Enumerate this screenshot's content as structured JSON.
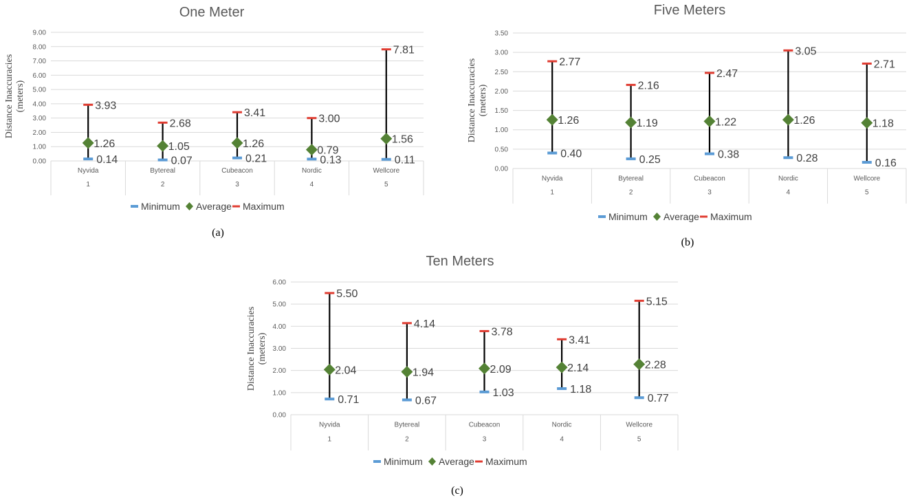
{
  "chart_data": [
    {
      "type": "stock",
      "title": "One Meter",
      "ylabel": "Distance Inaccuracies (meters)",
      "ylabel_lines": [
        "Distance Inaccuracies",
        "(meters)"
      ],
      "ylim": [
        0,
        9
      ],
      "yticks": [
        "0.00",
        "1.00",
        "2.00",
        "3.00",
        "4.00",
        "5.00",
        "6.00",
        "7.00",
        "8.00",
        "9.00"
      ],
      "categories": [
        "Nyvida",
        "Bytereal",
        "Cubeacon",
        "Nordic",
        "Wellcore"
      ],
      "category_index": [
        "1",
        "2",
        "3",
        "4",
        "5"
      ],
      "series": [
        {
          "name": "Minimum",
          "values": [
            0.14,
            0.07,
            0.21,
            0.13,
            0.11
          ],
          "labels": [
            "0.14",
            "0.07",
            "0.21",
            "0.13",
            "0.11"
          ]
        },
        {
          "name": "Average",
          "values": [
            1.26,
            1.05,
            1.26,
            0.79,
            1.56
          ],
          "labels": [
            "1.26",
            "1.05",
            "1.26",
            "0.79",
            "1.56"
          ]
        },
        {
          "name": "Maximum",
          "values": [
            3.93,
            2.68,
            3.41,
            3.0,
            7.81
          ],
          "labels": [
            "3.93",
            "2.68",
            "3.41",
            "3.00",
            "7.81"
          ]
        }
      ],
      "caption": "(a)"
    },
    {
      "type": "stock",
      "title": "Five Meters",
      "ylabel": "Distance Inaccuracies (meters)",
      "ylabel_lines": [
        "Distance Inaccuracies",
        "(meters)"
      ],
      "ylim": [
        0,
        3.5
      ],
      "yticks": [
        "0.00",
        "0.50",
        "1.00",
        "1.50",
        "2.00",
        "2.50",
        "3.00",
        "3.50"
      ],
      "categories": [
        "Nyvida",
        "Bytereal",
        "Cubeacon",
        "Nordic",
        "Wellcore"
      ],
      "category_index": [
        "1",
        "2",
        "3",
        "4",
        "5"
      ],
      "series": [
        {
          "name": "Minimum",
          "values": [
            0.4,
            0.25,
            0.38,
            0.28,
            0.16
          ],
          "labels": [
            "0.40",
            "0.25",
            "0.38",
            "0.28",
            "0.16"
          ]
        },
        {
          "name": "Average",
          "values": [
            1.26,
            1.19,
            1.22,
            1.26,
            1.18
          ],
          "labels": [
            "1.26",
            "1.19",
            "1.22",
            "1.26",
            "1.18"
          ]
        },
        {
          "name": "Maximum",
          "values": [
            2.77,
            2.16,
            2.47,
            3.05,
            2.71
          ],
          "labels": [
            "2.77",
            "2.16",
            "2.47",
            "3.05",
            "2.71"
          ]
        }
      ],
      "caption": "(b)"
    },
    {
      "type": "stock",
      "title": "Ten Meters",
      "ylabel": "Distance Inaccuracies (meters)",
      "ylabel_lines": [
        "Distance Inaccuracies",
        "(meters)"
      ],
      "ylim": [
        0,
        6
      ],
      "yticks": [
        "0.00",
        "1.00",
        "2.00",
        "3.00",
        "4.00",
        "5.00",
        "6.00"
      ],
      "categories": [
        "Nyvida",
        "Bytereal",
        "Cubeacon",
        "Nordic",
        "Wellcore"
      ],
      "category_index": [
        "1",
        "2",
        "3",
        "4",
        "5"
      ],
      "series": [
        {
          "name": "Minimum",
          "values": [
            0.71,
            0.67,
            1.03,
            1.18,
            0.77
          ],
          "labels": [
            "0.71",
            "0.67",
            "1.03",
            "1.18",
            "0.77"
          ]
        },
        {
          "name": "Average",
          "values": [
            2.04,
            1.94,
            2.09,
            2.14,
            2.28
          ],
          "labels": [
            "2.04",
            "1.94",
            "2.09",
            "2.14",
            "2.28"
          ]
        },
        {
          "name": "Maximum",
          "values": [
            5.5,
            4.14,
            3.78,
            3.41,
            5.15
          ],
          "labels": [
            "5.50",
            "4.14",
            "3.78",
            "3.41",
            "5.15"
          ]
        }
      ],
      "caption": "(c)"
    }
  ],
  "colors": {
    "minimum": "#5b9bd5",
    "average": "#548235",
    "maximum": "#e03c31",
    "range_line": "#000000",
    "grid": "#d9d9d9"
  }
}
